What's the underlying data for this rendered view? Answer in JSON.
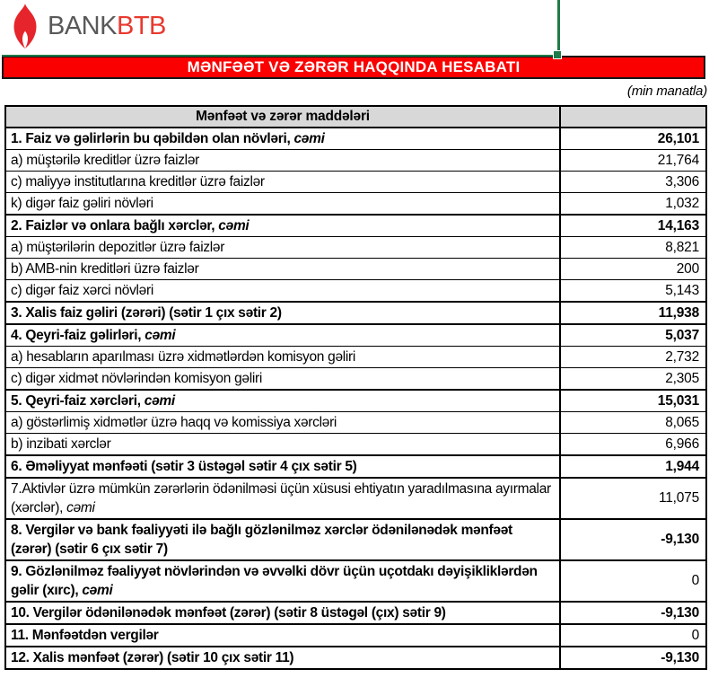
{
  "colors": {
    "banner_bg": "#fa0000",
    "green": "#1e7a48",
    "logo_gray": "#58595b",
    "logo_red": "#e8392f",
    "flame_red": "#e6242c",
    "header_bg": "#d8d8d8"
  },
  "logo": {
    "bank": "BANK",
    "btb": "BTB"
  },
  "banner": {
    "title": "MƏNFƏƏT VƏ ZƏRƏR HAQQINDA HESABATI"
  },
  "units_note": "(min manatla)",
  "table": {
    "header": "Mənfəət və zərər maddələri",
    "rows": [
      {
        "label": "1. Faiz və gəlirlərin bu qəbildən olan növləri,",
        "italic_suffix": " cəmi",
        "value": "26,101",
        "label_bold": true,
        "value_bold": true,
        "major": true
      },
      {
        "label": "a) müştərilə kreditlər üzrə faizlər",
        "value": "21,764",
        "label_bold": false,
        "value_bold": false,
        "major": false
      },
      {
        "label": "c) maliyyə institutlarına kreditlər üzrə faizlər",
        "value": "3,306",
        "label_bold": false,
        "value_bold": false,
        "major": false
      },
      {
        "label": "k) digər faiz gəliri növləri",
        "value": "1,032",
        "label_bold": false,
        "value_bold": false,
        "major": false
      },
      {
        "label": "2. Faizlər və onlara bağlı xərclər,",
        "italic_suffix": " cəmi",
        "value": "14,163",
        "label_bold": true,
        "value_bold": true,
        "major": true
      },
      {
        "label": "a) müştərilərin depozitlər üzrə faizlər",
        "value": "8,821",
        "label_bold": false,
        "value_bold": false,
        "major": false
      },
      {
        "label": "b) AMB-nin kreditləri üzrə faizlər",
        "value": "200",
        "label_bold": false,
        "value_bold": false,
        "major": false
      },
      {
        "label": "c) digər faiz xərci növləri",
        "value": "5,143",
        "label_bold": false,
        "value_bold": false,
        "major": false
      },
      {
        "label": "3. Xalis faiz gəliri (zərəri) (sətir 1 çıx sətir 2)",
        "value": "11,938",
        "label_bold": true,
        "value_bold": true,
        "major": true
      },
      {
        "label": "4. Qeyri-faiz gəlirləri,",
        "italic_suffix": " cəmi",
        "value": "5,037",
        "label_bold": true,
        "value_bold": true,
        "major": true
      },
      {
        "label": "a) hesabların aparılması üzrə xidmətlərdən komisyon gəliri",
        "value": "2,732",
        "label_bold": false,
        "value_bold": false,
        "major": false
      },
      {
        "label": "c) digər xidmət növlərindən komisyon gəliri",
        "value": "2,305",
        "label_bold": false,
        "value_bold": false,
        "major": false
      },
      {
        "label": "5. Qeyri-faiz xərcləri,",
        "italic_suffix": " cəmi",
        "value": "15,031",
        "label_bold": true,
        "value_bold": true,
        "major": true
      },
      {
        "label": "a) göstərlimiş xidmətlər üzrə haqq və komissiya xərcləri",
        "value": "8,065",
        "label_bold": false,
        "value_bold": false,
        "major": false
      },
      {
        "label": "b) inzibati xərclər",
        "value": "6,966",
        "label_bold": false,
        "value_bold": false,
        "major": false
      },
      {
        "label": "6. Əməliyyat mənfəəti (sətir 3 üstəgəl sətir 4 çıx sətir 5)",
        "value": "1,944",
        "label_bold": true,
        "value_bold": true,
        "major": true
      },
      {
        "label": "7.Aktivlər üzrə mümkün zərərlərin ödənilməsi üçün xüsusi ehtiyatın yaradılmasına ayırmalar (xərclər),",
        "italic_suffix": " cəmi",
        "value": "11,075",
        "label_bold": false,
        "value_bold": false,
        "major": true
      },
      {
        "label": "8. Vergilər və bank fəaliyyəti ilə bağlı gözlənilməz xərclər ödənilənədək mənfəət (zərər) (sətir 6 çıx sətir 7)",
        "value": "-9,130",
        "label_bold": true,
        "value_bold": true,
        "major": true
      },
      {
        "label": "9. Gözlənilməz fəaliyyət növlərindən və əvvəlki dövr üçün uçotdakı dəyişikliklərdən gəlir (xırc),",
        "italic_suffix": " cəmi",
        "value": "0",
        "label_bold": true,
        "value_bold": false,
        "major": true
      },
      {
        "label": "10. Vergilər ödənilənədək mənfəət (zərər) (sətir 8 üstəgəl (çıx) sətir 9)",
        "value": "-9,130",
        "label_bold": true,
        "value_bold": true,
        "major": true
      },
      {
        "label": "11. Mənfəətdən vergilər",
        "value": "0",
        "label_bold": true,
        "value_bold": false,
        "major": true
      },
      {
        "label": "12. Xalis mənfəət (zərər) (sətir 10 çıx sətir 11)",
        "value": "-9,130",
        "label_bold": true,
        "value_bold": true,
        "major": true
      }
    ]
  }
}
